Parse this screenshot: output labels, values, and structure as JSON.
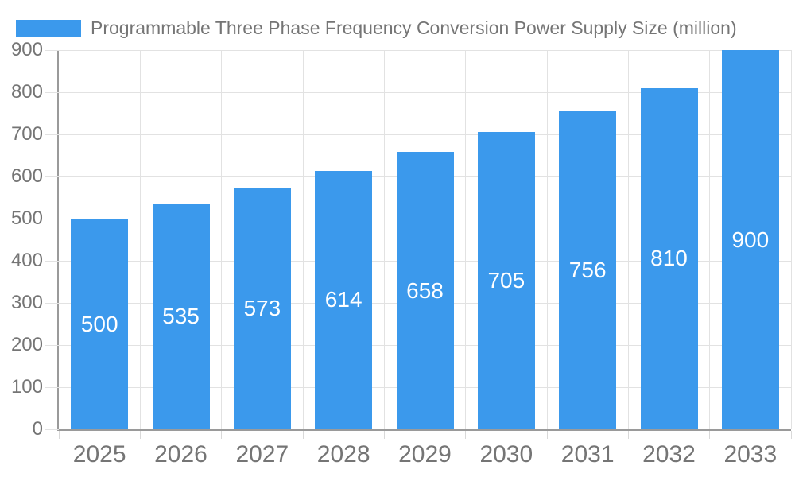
{
  "legend": {
    "label": "Programmable Three Phase Frequency Conversion Power Supply Size (million)"
  },
  "chart_data": {
    "type": "bar",
    "title": "Programmable Three Phase Frequency Conversion Power Supply Size (million)",
    "categories": [
      "2025",
      "2026",
      "2027",
      "2028",
      "2029",
      "2030",
      "2031",
      "2032",
      "2033"
    ],
    "values": [
      500,
      535,
      573,
      614,
      658,
      705,
      756,
      810,
      900
    ],
    "bar_labels": [
      "500",
      "535",
      "573",
      "614",
      "658",
      "705",
      "756",
      "810",
      "900"
    ],
    "xlabel": "",
    "ylabel": "",
    "ylim": [
      0,
      900
    ],
    "ytick_step": 100,
    "ytick_labels": [
      "0",
      "100",
      "200",
      "300",
      "400",
      "500",
      "600",
      "700",
      "800",
      "900"
    ],
    "grid": true,
    "legend_position": "top-left"
  },
  "colors": {
    "bar": "#3b99ec",
    "text": "#757575",
    "gridline": "#e2e2e2",
    "axis": "#9a9a9a",
    "tick": "#d9d9d9",
    "bar_label": "#ffffff",
    "background": "#ffffff"
  }
}
